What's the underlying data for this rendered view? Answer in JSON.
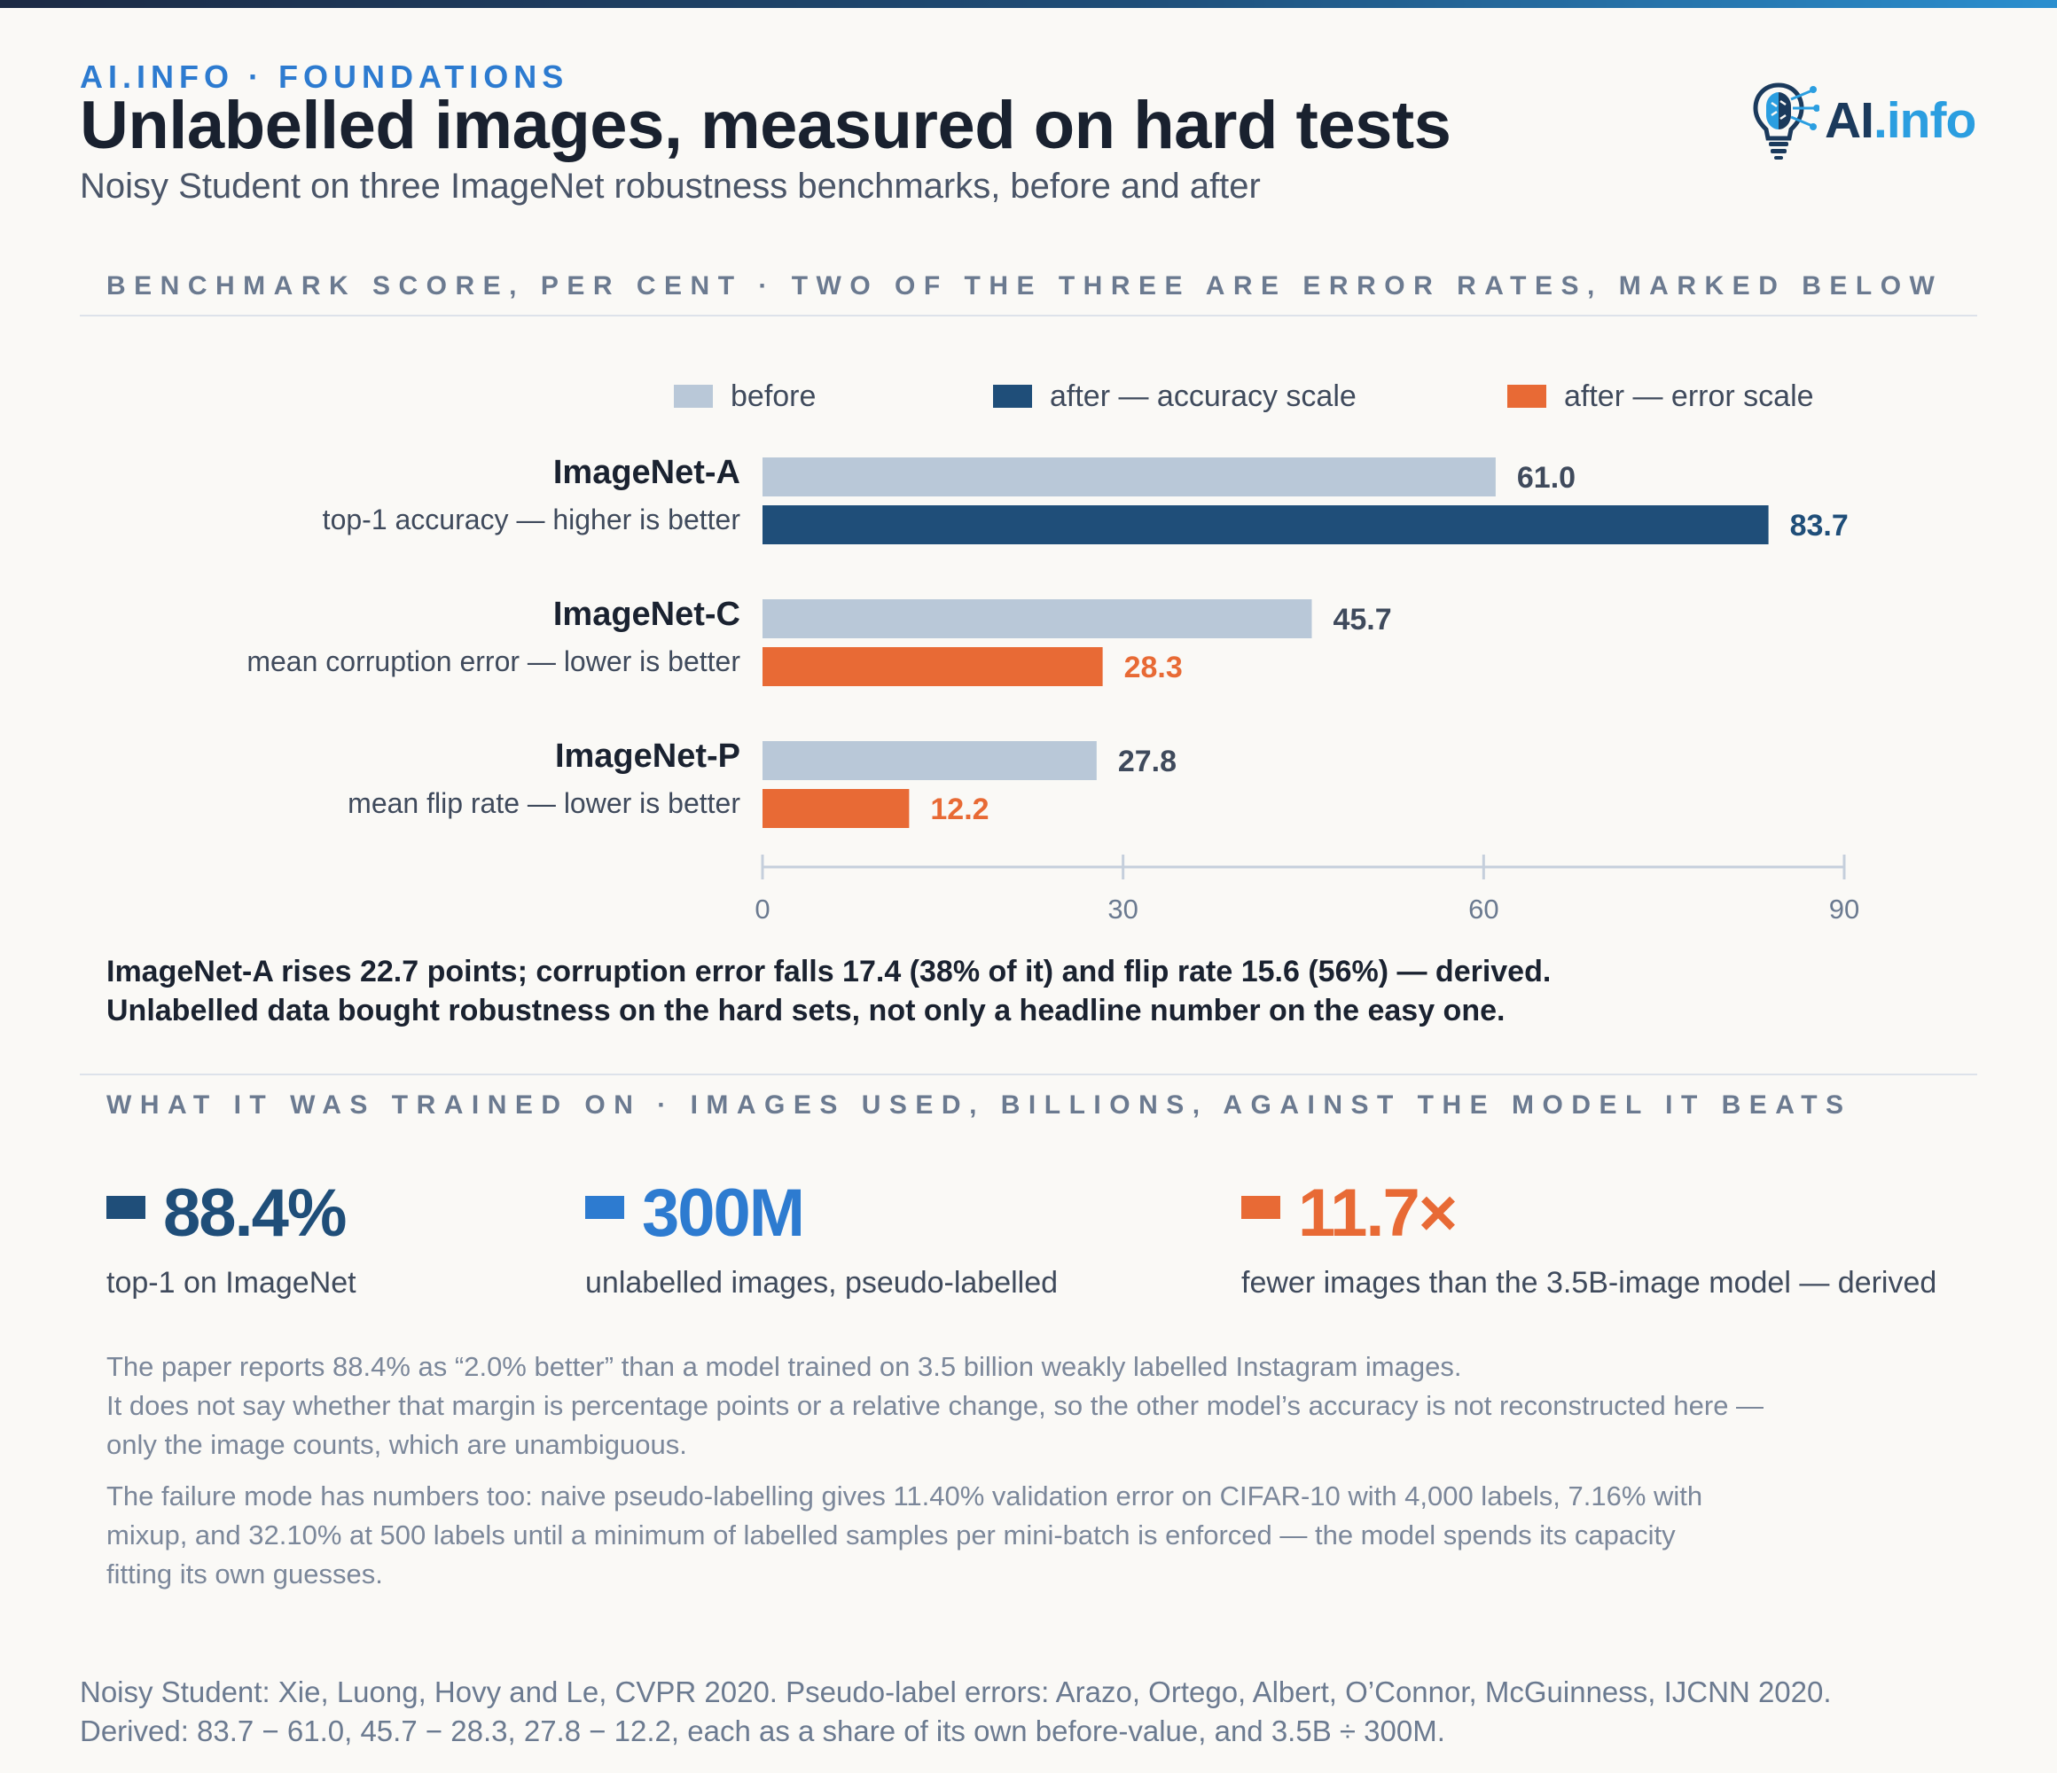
{
  "header": {
    "kicker": "AI.INFO · FOUNDATIONS",
    "title": "Unlabelled images, measured on hard tests",
    "subtitle": "Noisy Student on three ImageNet robustness benchmarks, before and after",
    "logo_text_ai": "AI",
    "logo_text_info": ".info"
  },
  "section1": {
    "label": "BENCHMARK SCORE, PER CENT · TWO OF THE THREE ARE ERROR RATES, MARKED BELOW"
  },
  "legend": {
    "before": "before",
    "after_accuracy": "after — accuracy scale",
    "after_error": "after — error scale"
  },
  "colors": {
    "before": "#b9c8d8",
    "after_accuracy": "#1f4e79",
    "after_error": "#e86a35",
    "accent_blue": "#2d7bd0"
  },
  "chart_data": {
    "type": "bar",
    "orientation": "horizontal",
    "categories": [
      {
        "name": "ImageNet-A",
        "subtitle": "top-1 accuracy — higher is better",
        "before": 61.0,
        "before_label": "61.0",
        "after": 83.7,
        "after_label": "83.7",
        "after_scale": "accuracy"
      },
      {
        "name": "ImageNet-C",
        "subtitle": "mean corruption error — lower is better",
        "before": 45.7,
        "before_label": "45.7",
        "after": 28.3,
        "after_label": "28.3",
        "after_scale": "error"
      },
      {
        "name": "ImageNet-P",
        "subtitle": "mean flip rate — lower is better",
        "before": 27.8,
        "before_label": "27.8",
        "after": 12.2,
        "after_label": "12.2",
        "after_scale": "error"
      }
    ],
    "series": [
      {
        "name": "before"
      },
      {
        "name": "after — accuracy scale"
      },
      {
        "name": "after — error scale"
      }
    ],
    "xlim": [
      0,
      90
    ],
    "ticks": [
      0,
      30,
      60,
      90
    ],
    "tick_labels": [
      "0",
      "30",
      "60",
      "90"
    ],
    "legend_position": "top"
  },
  "takeaway": {
    "line1": "ImageNet-A rises 22.7 points; corruption error falls 17.4 (38% of it) and flip rate 15.6 (56%) — derived.",
    "line2": "Unlabelled data bought robustness on the hard sets, not only a headline number on the easy one."
  },
  "section2": {
    "label": "WHAT IT WAS TRAINED ON · IMAGES USED, BILLIONS, AGAINST THE MODEL IT BEATS"
  },
  "stats": [
    {
      "value": "88.4%",
      "desc": "top-1 on ImageNet",
      "color": "#1f4e79"
    },
    {
      "value": "300M",
      "desc": "unlabelled images, pseudo-labelled",
      "color": "#2d7bd0"
    },
    {
      "value": "11.7×",
      "desc": "fewer images than the 3.5B-image model — derived",
      "color": "#e86a35"
    }
  ],
  "notes": {
    "p1_l1": "The paper reports 88.4% as “2.0% better” than a model trained on 3.5 billion weakly labelled Instagram images.",
    "p1_l2": "It does not say whether that margin is percentage points or a relative change, so the other model’s accuracy is not reconstructed here —",
    "p1_l3": "only the image counts, which are unambiguous.",
    "p2_l1": "The failure mode has numbers too: naive pseudo-labelling gives 11.40% validation error on CIFAR-10 with 4,000 labels, 7.16% with",
    "p2_l2": "mixup, and 32.10% at 500 labels until a minimum of labelled samples per mini-batch is enforced — the model spends its capacity",
    "p2_l3": "fitting its own guesses."
  },
  "source": {
    "line1": "Noisy Student: Xie, Luong, Hovy and Le, CVPR 2020. Pseudo-label errors: Arazo, Ortego, Albert, O’Connor, McGuinness, IJCNN 2020.",
    "line2": "Derived: 83.7 − 61.0, 45.7 − 28.3, 27.8 − 12.2, each as a share of its own before-value, and 3.5B ÷ 300M."
  }
}
